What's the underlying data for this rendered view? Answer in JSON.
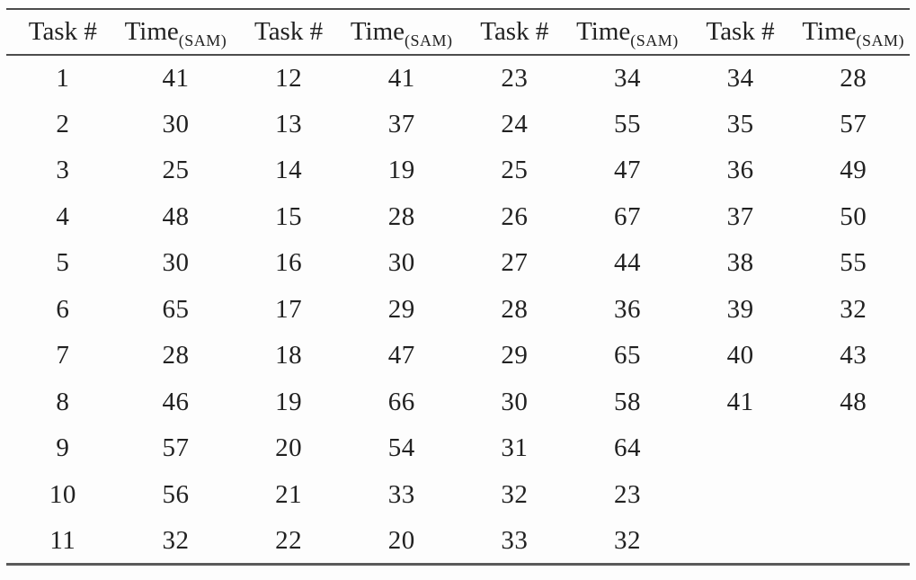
{
  "table": {
    "header": {
      "task_label": "Task #",
      "time_label": "Time",
      "time_subscript": "(SAM)"
    },
    "rows": [
      [
        "1",
        "41",
        "12",
        "41",
        "23",
        "34",
        "34",
        "28"
      ],
      [
        "2",
        "30",
        "13",
        "37",
        "24",
        "55",
        "35",
        "57"
      ],
      [
        "3",
        "25",
        "14",
        "19",
        "25",
        "47",
        "36",
        "49"
      ],
      [
        "4",
        "48",
        "15",
        "28",
        "26",
        "67",
        "37",
        "50"
      ],
      [
        "5",
        "30",
        "16",
        "30",
        "27",
        "44",
        "38",
        "55"
      ],
      [
        "6",
        "65",
        "17",
        "29",
        "28",
        "36",
        "39",
        "32"
      ],
      [
        "7",
        "28",
        "18",
        "47",
        "29",
        "65",
        "40",
        "43"
      ],
      [
        "8",
        "46",
        "19",
        "66",
        "30",
        "58",
        "41",
        "48"
      ],
      [
        "9",
        "57",
        "20",
        "54",
        "31",
        "64",
        "",
        ""
      ],
      [
        "10",
        "56",
        "21",
        "33",
        "32",
        "23",
        "",
        ""
      ],
      [
        "11",
        "32",
        "22",
        "20",
        "33",
        "32",
        "",
        ""
      ]
    ]
  },
  "colors": {
    "rule": "#4c4c4c",
    "text": "#212121",
    "background": "#fdfdfd"
  },
  "chart_data": {
    "type": "table",
    "columns": [
      "Task #",
      "Time(SAM)"
    ],
    "tasks": [
      1,
      2,
      3,
      4,
      5,
      6,
      7,
      8,
      9,
      10,
      11,
      12,
      13,
      14,
      15,
      16,
      17,
      18,
      19,
      20,
      21,
      22,
      23,
      24,
      25,
      26,
      27,
      28,
      29,
      30,
      31,
      32,
      33,
      34,
      35,
      36,
      37,
      38,
      39,
      40,
      41
    ],
    "times": [
      41,
      30,
      25,
      48,
      30,
      65,
      28,
      46,
      57,
      56,
      32,
      41,
      37,
      19,
      28,
      30,
      29,
      47,
      66,
      54,
      33,
      20,
      34,
      55,
      47,
      67,
      44,
      36,
      65,
      58,
      64,
      23,
      32,
      28,
      57,
      49,
      50,
      55,
      32,
      43,
      48
    ],
    "notes": "Four side-by-side Task#/Time(SAM) column pairs; tasks 1-11, 12-22, 23-33, 34-41"
  }
}
